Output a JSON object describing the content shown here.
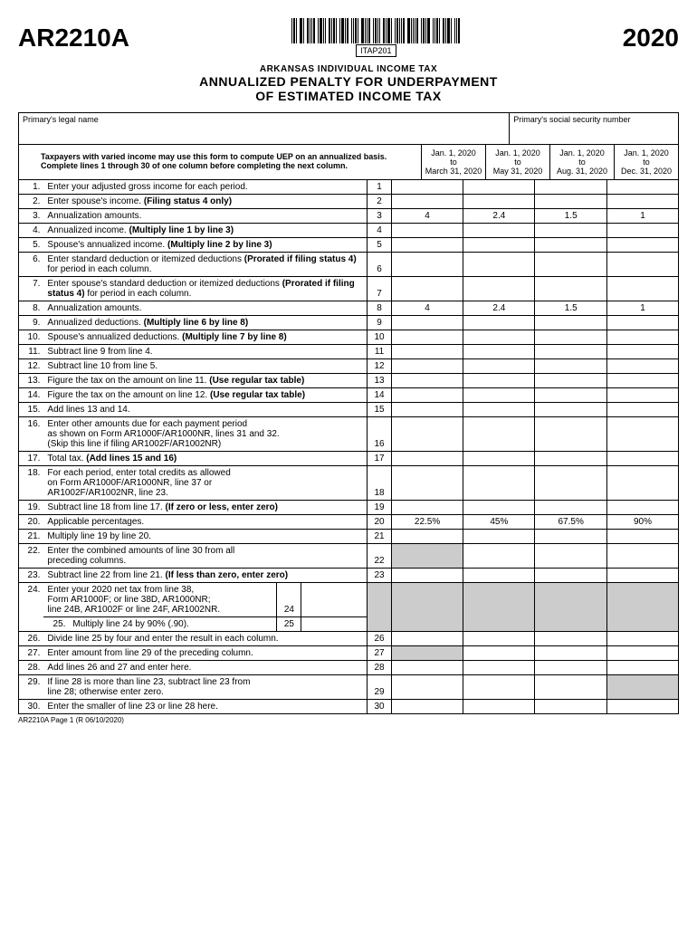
{
  "header": {
    "form_code": "AR2210A",
    "barcode_label": "ITAP201",
    "year": "2020"
  },
  "title": {
    "line1": "ARKANSAS INDIVIDUAL INCOME TAX",
    "line2": "ANNUALIZED PENALTY FOR UNDERPAYMENT",
    "line3": "OF ESTIMATED INCOME TAX"
  },
  "labels": {
    "primary_name": "Primary's legal name",
    "primary_ssn": "Primary's social security number",
    "instruction": "Taxpayers with varied income may use this form to compute UEP on an annualized basis. Complete lines 1 through 30 of one column before completing the next column."
  },
  "periods": [
    {
      "start": "Jan. 1, 2020",
      "mid": "to",
      "end": "March 31, 2020"
    },
    {
      "start": "Jan. 1, 2020",
      "mid": "to",
      "end": "May 31, 2020"
    },
    {
      "start": "Jan. 1, 2020",
      "mid": "to",
      "end": "Aug. 31, 2020"
    },
    {
      "start": "Jan. 1, 2020",
      "mid": "to",
      "end": "Dec. 31, 2020"
    }
  ],
  "rows": [
    {
      "n": "1.",
      "desc": "Enter your adjusted gross income for each period.",
      "ln": "1",
      "v": [
        "",
        "",
        "",
        ""
      ]
    },
    {
      "n": "2.",
      "desc": "Enter spouse's income. <b>(Filing status 4 only)</b>",
      "ln": "2",
      "v": [
        "",
        "",
        "",
        ""
      ]
    },
    {
      "n": "3.",
      "desc": "Annualization amounts.",
      "ln": "3",
      "v": [
        "4",
        "2.4",
        "1.5",
        "1"
      ]
    },
    {
      "n": "4.",
      "desc": "Annualized income. <b>(Multiply line 1 by line 3)</b>",
      "ln": "4",
      "v": [
        "",
        "",
        "",
        ""
      ]
    },
    {
      "n": "5.",
      "desc": "Spouse's annualized income. <b>(Multiply line 2 by line 3)</b>",
      "ln": "5",
      "v": [
        "",
        "",
        "",
        ""
      ]
    },
    {
      "n": "6.",
      "desc": "Enter standard deduction or itemized deductions <b>(Prorated if filing status 4)</b> for period in each column.",
      "ln": "6",
      "v": [
        "",
        "",
        "",
        ""
      ]
    },
    {
      "n": "7.",
      "desc": "Enter spouse's standard deduction or itemized deductions <b>(Prorated if filing status 4)</b> for period in each column.",
      "ln": "7",
      "v": [
        "",
        "",
        "",
        ""
      ]
    },
    {
      "n": "8.",
      "desc": "Annualization amounts.",
      "ln": "8",
      "v": [
        "4",
        "2.4",
        "1.5",
        "1"
      ]
    },
    {
      "n": "9.",
      "desc": "Annualized deductions. <b>(Multiply line 6 by line 8)</b>",
      "ln": "9",
      "v": [
        "",
        "",
        "",
        ""
      ]
    },
    {
      "n": "10.",
      "desc": "Spouse's annualized deductions. <b>(Multiply line 7 by line 8)</b>",
      "ln": "10",
      "v": [
        "",
        "",
        "",
        ""
      ]
    },
    {
      "n": "11.",
      "desc": "Subtract line 9 from line 4.",
      "ln": "11",
      "v": [
        "",
        "",
        "",
        ""
      ]
    },
    {
      "n": "12.",
      "desc": "Subtract line 10 from line 5.",
      "ln": "12",
      "v": [
        "",
        "",
        "",
        ""
      ]
    },
    {
      "n": "13.",
      "desc": "Figure the tax on the amount on line 11. <b>(Use regular tax table)</b>",
      "ln": "13",
      "v": [
        "",
        "",
        "",
        ""
      ]
    },
    {
      "n": "14.",
      "desc": "Figure the tax on the amount on line 12. <b>(Use regular tax table)</b>",
      "ln": "14",
      "v": [
        "",
        "",
        "",
        ""
      ]
    },
    {
      "n": "15.",
      "desc": "Add lines 13 and 14.",
      "ln": "15",
      "v": [
        "",
        "",
        "",
        ""
      ]
    },
    {
      "n": "16.",
      "desc": "Enter other amounts due for each payment period<br>as shown on Form AR1000F/AR1000NR, lines 31 and 32.<br>(Skip this line if filing AR1002F/AR1002NR)",
      "ln": "16",
      "v": [
        "",
        "",
        "",
        ""
      ]
    },
    {
      "n": "17.",
      "desc": "Total tax. <b>(Add lines 15 and 16)</b>",
      "ln": "17",
      "v": [
        "",
        "",
        "",
        ""
      ]
    },
    {
      "n": "18.",
      "desc": "For each period, enter total credits as allowed<br>on Form AR1000F/AR1000NR, line 37 or<br>AR1002F/AR1002NR, line 23.",
      "ln": "18",
      "v": [
        "",
        "",
        "",
        ""
      ]
    },
    {
      "n": "19.",
      "desc": "Subtract line 18 from line 17. <b>(If zero or less, enter zero)</b>",
      "ln": "19",
      "v": [
        "",
        "",
        "",
        ""
      ]
    },
    {
      "n": "20.",
      "desc": "Applicable percentages.",
      "ln": "20",
      "v": [
        "22.5%",
        "45%",
        "67.5%",
        "90%"
      ]
    },
    {
      "n": "21.",
      "desc": "Multiply line 19 by line 20.",
      "ln": "21",
      "v": [
        "",
        "",
        "",
        ""
      ]
    },
    {
      "n": "22.",
      "desc": "Enter the combined amounts of line 30 from all<br>preceding columns.",
      "ln": "22",
      "v": [
        "",
        "",
        "",
        ""
      ],
      "shade": [
        0
      ]
    },
    {
      "n": "23.",
      "desc": "Subtract line 22 from line 21. <b>(If less than zero, enter zero)</b>",
      "ln": "23",
      "v": [
        "",
        "",
        "",
        ""
      ]
    },
    {
      "n": "26.",
      "desc": "Divide line 25 by four and enter the result in each column.",
      "ln": "26",
      "v": [
        "",
        "",
        "",
        ""
      ]
    },
    {
      "n": "27.",
      "desc": "Enter amount from line 29 of the preceding column.",
      "ln": "27",
      "v": [
        "",
        "",
        "",
        ""
      ],
      "shade": [
        0
      ]
    },
    {
      "n": "28.",
      "desc": "Add lines 26 and 27 and enter here.",
      "ln": "28",
      "v": [
        "",
        "",
        "",
        ""
      ]
    },
    {
      "n": "29.",
      "desc": "If line 28 is more than line 23, subtract line 23 from<br>line 28; otherwise enter zero.",
      "ln": "29",
      "v": [
        "",
        "",
        "",
        ""
      ],
      "shade": [
        3
      ]
    },
    {
      "n": "30.",
      "desc": "Enter the smaller of line 23 or line 28 here.",
      "ln": "30",
      "v": [
        "",
        "",
        "",
        ""
      ]
    }
  ],
  "row24": {
    "n": "24.",
    "desc": "Enter your 2020 net tax from line 38,<br>Form AR1000F; or line 38D, AR1000NR;<br>line 24B, AR1002F or line 24F, AR1002NR.",
    "ln": "24"
  },
  "row25": {
    "n": "25.",
    "desc": "Multiply line 24 by 90% (.90).",
    "ln": "25"
  },
  "footer": "AR2210A Page 1 (R 06/10/2020)"
}
